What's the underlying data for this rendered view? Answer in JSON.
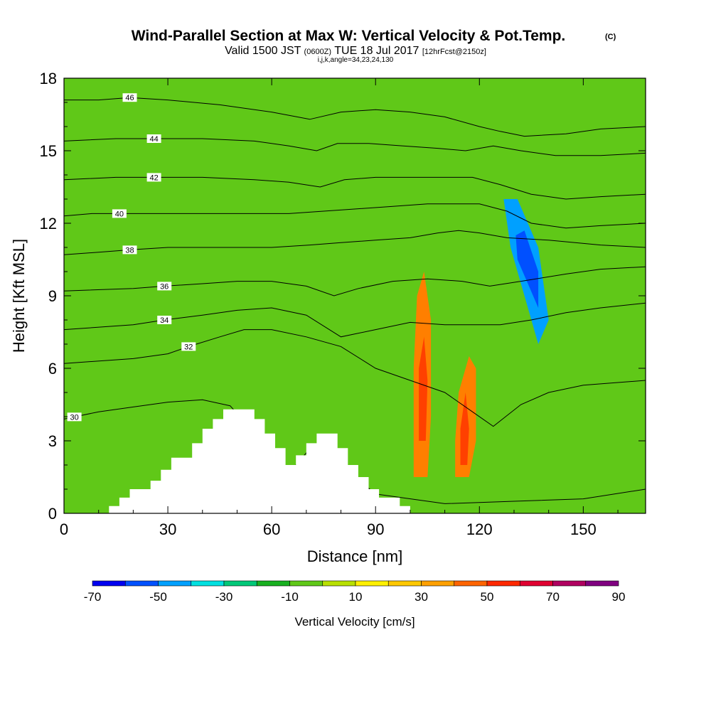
{
  "header": {
    "title": "Wind-Parallel Section at Max W: Vertical Velocity & Pot.Temp.",
    "copyright": "(C)",
    "valid_prefix": "Valid 1500 JST",
    "valid_z": "(0600Z)",
    "valid_date": "TUE 18 Jul 2017",
    "forecast": "[12hrFcst@2150z]",
    "indices": "i,j,k,angle=34,23,24,130"
  },
  "chart_data": {
    "type": "heatmap",
    "xlabel": "Distance [nm]",
    "ylabel": "Height [Kft MSL]",
    "xlim": [
      0,
      168
    ],
    "ylim": [
      0,
      18
    ],
    "x_ticks": [
      {
        "value": 0,
        "label": "0"
      },
      {
        "value": 30,
        "label": "30"
      },
      {
        "value": 60,
        "label": "60"
      },
      {
        "value": 90,
        "label": "90"
      },
      {
        "value": 120,
        "label": "120"
      },
      {
        "value": 150,
        "label": "150"
      }
    ],
    "y_ticks": [
      {
        "value": 0,
        "label": "0"
      },
      {
        "value": 3,
        "label": "3"
      },
      {
        "value": 6,
        "label": "6"
      },
      {
        "value": 9,
        "label": "9"
      },
      {
        "value": 12,
        "label": "12"
      },
      {
        "value": 15,
        "label": "15"
      },
      {
        "value": 18,
        "label": "18"
      }
    ],
    "background_color": "#60c818",
    "fill_bands": [
      {
        "name": "strong-updraft-105",
        "value": 40,
        "color": "#ff7f00",
        "points": [
          [
            101,
            1.5
          ],
          [
            105,
            1.5
          ],
          [
            106,
            4
          ],
          [
            106,
            8
          ],
          [
            104,
            10
          ],
          [
            102,
            9
          ],
          [
            101,
            6
          ]
        ]
      },
      {
        "name": "updraft-core-104",
        "value": 60,
        "color": "#ff4000",
        "points": [
          [
            102.5,
            3
          ],
          [
            104.5,
            3
          ],
          [
            105,
            5.5
          ],
          [
            104,
            7.3
          ],
          [
            102.5,
            6
          ]
        ]
      },
      {
        "name": "strong-updraft-117",
        "value": 40,
        "color": "#ff7f00",
        "points": [
          [
            113,
            1.5
          ],
          [
            117,
            1.5
          ],
          [
            119,
            3
          ],
          [
            119,
            6
          ],
          [
            117,
            6.5
          ],
          [
            114,
            5
          ],
          [
            113,
            3
          ]
        ]
      },
      {
        "name": "updraft-core-116",
        "value": 60,
        "color": "#ff4000",
        "points": [
          [
            114.5,
            2
          ],
          [
            116.5,
            2
          ],
          [
            117,
            3.5
          ],
          [
            116,
            5
          ],
          [
            114.5,
            3.5
          ]
        ]
      },
      {
        "name": "downdraft-133",
        "value": -40,
        "color": "#00a0ff",
        "points": [
          [
            127,
            13
          ],
          [
            131,
            13
          ],
          [
            137,
            11
          ],
          [
            140,
            8
          ],
          [
            137,
            7
          ],
          [
            133,
            9
          ],
          [
            129,
            11
          ]
        ]
      },
      {
        "name": "downdraft-core-133",
        "value": -60,
        "color": "#0050ff",
        "points": [
          [
            130.5,
            11.5
          ],
          [
            133,
            11.7
          ],
          [
            137,
            10
          ],
          [
            137,
            8.5
          ],
          [
            134,
            9.5
          ],
          [
            131,
            10.5
          ]
        ]
      }
    ],
    "legend": {
      "label": "Vertical Velocity [cm/s]",
      "placement": "bottom",
      "tick_labels": [
        "-70",
        "-50",
        "-30",
        "-10",
        "10",
        "30",
        "50",
        "70",
        "90"
      ],
      "bins": [
        {
          "from": -70,
          "to": -60,
          "color": "#0000f0"
        },
        {
          "from": -60,
          "to": -50,
          "color": "#0050ff"
        },
        {
          "from": -50,
          "to": -40,
          "color": "#00a0ff"
        },
        {
          "from": -40,
          "to": -30,
          "color": "#00e0e0"
        },
        {
          "from": -30,
          "to": -20,
          "color": "#00c878"
        },
        {
          "from": -20,
          "to": -10,
          "color": "#18b020"
        },
        {
          "from": -10,
          "to": 0,
          "color": "#60c818"
        },
        {
          "from": 0,
          "to": 10,
          "color": "#b8e000"
        },
        {
          "from": 10,
          "to": 20,
          "color": "#fff000"
        },
        {
          "from": 20,
          "to": 30,
          "color": "#ffc800"
        },
        {
          "from": 30,
          "to": 40,
          "color": "#ffa000"
        },
        {
          "from": 40,
          "to": 50,
          "color": "#ff6400"
        },
        {
          "from": 50,
          "to": 60,
          "color": "#ff2800"
        },
        {
          "from": 60,
          "to": 70,
          "color": "#e00030"
        },
        {
          "from": 70,
          "to": 80,
          "color": "#b00060"
        },
        {
          "from": 80,
          "to": 90,
          "color": "#800080"
        }
      ]
    },
    "terrain_profile": [
      [
        0,
        0
      ],
      [
        13,
        0
      ],
      [
        13,
        0.3
      ],
      [
        16,
        0.3
      ],
      [
        16,
        0.65
      ],
      [
        19,
        0.65
      ],
      [
        19,
        1.0
      ],
      [
        25,
        1.0
      ],
      [
        25,
        1.35
      ],
      [
        28,
        1.35
      ],
      [
        28,
        1.8
      ],
      [
        31,
        1.8
      ],
      [
        31,
        2.3
      ],
      [
        37,
        2.3
      ],
      [
        37,
        2.9
      ],
      [
        40,
        2.9
      ],
      [
        40,
        3.5
      ],
      [
        43,
        3.5
      ],
      [
        43,
        3.9
      ],
      [
        46,
        3.9
      ],
      [
        46,
        4.3
      ],
      [
        55,
        4.3
      ],
      [
        55,
        3.9
      ],
      [
        58,
        3.9
      ],
      [
        58,
        3.3
      ],
      [
        61,
        3.3
      ],
      [
        61,
        2.7
      ],
      [
        64,
        2.7
      ],
      [
        64,
        2.0
      ],
      [
        67,
        2.0
      ],
      [
        67,
        2.4
      ],
      [
        70,
        2.4
      ],
      [
        70,
        2.9
      ],
      [
        73,
        2.9
      ],
      [
        73,
        3.3
      ],
      [
        79,
        3.3
      ],
      [
        79,
        2.7
      ],
      [
        82,
        2.7
      ],
      [
        82,
        2.0
      ],
      [
        85,
        2.0
      ],
      [
        85,
        1.5
      ],
      [
        88,
        1.5
      ],
      [
        88,
        1.0
      ],
      [
        91,
        1.0
      ],
      [
        91,
        0.65
      ],
      [
        97,
        0.65
      ],
      [
        97,
        0.3
      ],
      [
        100,
        0.3
      ],
      [
        100,
        0
      ],
      [
        168,
        0
      ]
    ],
    "isentropes": {
      "unit": "theta contour",
      "lines": [
        {
          "value": 30,
          "label": "30",
          "label_x": 3,
          "points": [
            [
              0,
              3.9
            ],
            [
              10,
              4.2
            ],
            [
              20,
              4.4
            ],
            [
              30,
              4.6
            ],
            [
              40,
              4.7
            ],
            [
              48,
              4.45
            ],
            [
              52,
              3.8
            ],
            [
              56,
              3.0
            ],
            [
              60,
              2.2
            ],
            [
              64,
              1.5
            ],
            [
              70,
              2.5
            ],
            [
              74,
              3.0
            ],
            [
              80,
              2.0
            ],
            [
              90,
              0.8
            ],
            [
              110,
              0.4
            ],
            [
              130,
              0.5
            ],
            [
              150,
              0.6
            ],
            [
              168,
              1.0
            ]
          ]
        },
        {
          "value": 32,
          "label": "32",
          "label_x": 36,
          "points": [
            [
              0,
              6.2
            ],
            [
              20,
              6.4
            ],
            [
              30,
              6.6
            ],
            [
              36,
              6.9
            ],
            [
              45,
              7.3
            ],
            [
              52,
              7.6
            ],
            [
              60,
              7.6
            ],
            [
              70,
              7.3
            ],
            [
              80,
              6.9
            ],
            [
              90,
              6.0
            ],
            [
              100,
              5.5
            ],
            [
              110,
              5.0
            ],
            [
              118,
              4.2
            ],
            [
              124,
              3.6
            ],
            [
              132,
              4.5
            ],
            [
              140,
              5.0
            ],
            [
              150,
              5.3
            ],
            [
              168,
              5.5
            ]
          ]
        },
        {
          "value": 34,
          "label": "34",
          "label_x": 29,
          "points": [
            [
              0,
              7.6
            ],
            [
              20,
              7.8
            ],
            [
              29,
              8.0
            ],
            [
              40,
              8.2
            ],
            [
              50,
              8.4
            ],
            [
              60,
              8.5
            ],
            [
              70,
              8.2
            ],
            [
              80,
              7.3
            ],
            [
              90,
              7.6
            ],
            [
              100,
              7.9
            ],
            [
              110,
              7.8
            ],
            [
              118,
              7.8
            ],
            [
              126,
              7.8
            ],
            [
              135,
              8.0
            ],
            [
              145,
              8.3
            ],
            [
              155,
              8.5
            ],
            [
              168,
              8.7
            ]
          ]
        },
        {
          "value": 36,
          "label": "36",
          "label_x": 29,
          "points": [
            [
              0,
              9.2
            ],
            [
              20,
              9.3
            ],
            [
              29,
              9.4
            ],
            [
              40,
              9.5
            ],
            [
              50,
              9.6
            ],
            [
              60,
              9.6
            ],
            [
              70,
              9.4
            ],
            [
              78,
              9.0
            ],
            [
              85,
              9.3
            ],
            [
              95,
              9.6
            ],
            [
              105,
              9.7
            ],
            [
              115,
              9.6
            ],
            [
              123,
              9.4
            ],
            [
              132,
              9.6
            ],
            [
              145,
              9.9
            ],
            [
              155,
              10.1
            ],
            [
              168,
              10.2
            ]
          ]
        },
        {
          "value": 38,
          "label": "38",
          "label_x": 19,
          "points": [
            [
              0,
              10.7
            ],
            [
              10,
              10.8
            ],
            [
              19,
              10.9
            ],
            [
              30,
              11.0
            ],
            [
              40,
              11.0
            ],
            [
              50,
              11.0
            ],
            [
              60,
              11.0
            ],
            [
              71,
              11.1
            ],
            [
              80,
              11.2
            ],
            [
              90,
              11.3
            ],
            [
              100,
              11.4
            ],
            [
              108,
              11.6
            ],
            [
              114,
              11.7
            ],
            [
              120,
              11.6
            ],
            [
              128,
              11.4
            ],
            [
              140,
              11.3
            ],
            [
              155,
              11.1
            ],
            [
              168,
              11.0
            ]
          ]
        },
        {
          "value": 40,
          "label": "40",
          "label_x": 16,
          "points": [
            [
              0,
              12.3
            ],
            [
              8,
              12.4
            ],
            [
              16,
              12.4
            ],
            [
              30,
              12.4
            ],
            [
              45,
              12.4
            ],
            [
              58,
              12.4
            ],
            [
              65,
              12.4
            ],
            [
              75,
              12.5
            ],
            [
              85,
              12.6
            ],
            [
              95,
              12.7
            ],
            [
              105,
              12.8
            ],
            [
              113,
              12.8
            ],
            [
              120,
              12.8
            ],
            [
              128,
              12.5
            ],
            [
              135,
              12.0
            ],
            [
              145,
              11.8
            ],
            [
              155,
              11.9
            ],
            [
              168,
              12.0
            ]
          ]
        },
        {
          "value": 42,
          "label": "42",
          "label_x": 26,
          "points": [
            [
              0,
              13.8
            ],
            [
              15,
              13.9
            ],
            [
              26,
              13.9
            ],
            [
              40,
              13.9
            ],
            [
              55,
              13.8
            ],
            [
              65,
              13.7
            ],
            [
              74,
              13.5
            ],
            [
              81,
              13.8
            ],
            [
              90,
              13.9
            ],
            [
              100,
              13.9
            ],
            [
              110,
              13.9
            ],
            [
              118,
              13.9
            ],
            [
              126,
              13.6
            ],
            [
              135,
              13.2
            ],
            [
              145,
              13.0
            ],
            [
              155,
              13.1
            ],
            [
              168,
              13.2
            ]
          ]
        },
        {
          "value": 44,
          "label": "44",
          "label_x": 26,
          "points": [
            [
              0,
              15.4
            ],
            [
              15,
              15.5
            ],
            [
              26,
              15.5
            ],
            [
              40,
              15.5
            ],
            [
              55,
              15.4
            ],
            [
              65,
              15.2
            ],
            [
              73,
              15.0
            ],
            [
              79,
              15.3
            ],
            [
              88,
              15.3
            ],
            [
              98,
              15.2
            ],
            [
              108,
              15.1
            ],
            [
              116,
              15.0
            ],
            [
              124,
              15.2
            ],
            [
              132,
              15.0
            ],
            [
              142,
              14.8
            ],
            [
              155,
              14.8
            ],
            [
              168,
              14.9
            ]
          ]
        },
        {
          "value": 46,
          "label": "46",
          "label_x": 19,
          "points": [
            [
              0,
              17.1
            ],
            [
              10,
              17.1
            ],
            [
              19,
              17.2
            ],
            [
              30,
              17.1
            ],
            [
              45,
              16.9
            ],
            [
              60,
              16.6
            ],
            [
              71,
              16.3
            ],
            [
              80,
              16.6
            ],
            [
              90,
              16.7
            ],
            [
              100,
              16.6
            ],
            [
              110,
              16.4
            ],
            [
              120,
              16.0
            ],
            [
              126,
              15.8
            ],
            [
              133,
              15.6
            ],
            [
              145,
              15.7
            ],
            [
              155,
              15.9
            ],
            [
              168,
              16.0
            ]
          ]
        }
      ]
    }
  }
}
